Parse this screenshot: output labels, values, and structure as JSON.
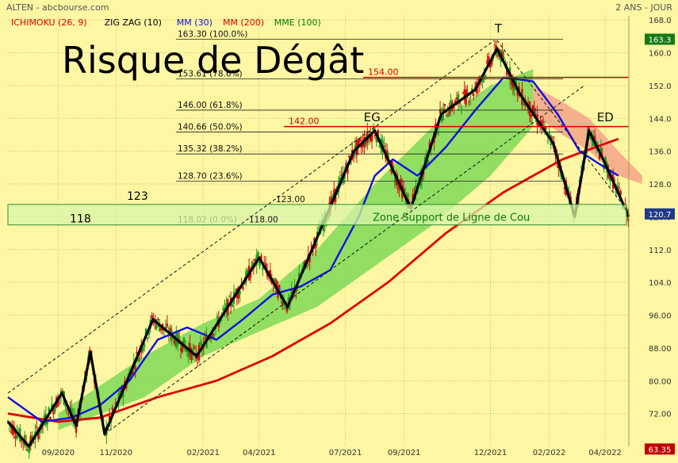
{
  "header": {
    "source": "ALTEN - abcbourse.com",
    "period": "2 ANS - JOUR"
  },
  "legend": [
    {
      "label": "ICHIMOKU (26, 9)",
      "color": "#e00000"
    },
    {
      "label": "ZIG ZAG (10)",
      "color": "#000000"
    },
    {
      "label": "MM (30)",
      "color": "#1010e0"
    },
    {
      "label": "MM (200)",
      "color": "#e00000"
    },
    {
      "label": "MME (100)",
      "color": "#008000"
    }
  ],
  "colors": {
    "background": "#fdf6a3",
    "grid": "#cdbd7c",
    "up_candle": "#19a019",
    "down_candle": "#d01010",
    "mm30": "#1010e0",
    "mm200": "#e00000",
    "zigzag": "#000000",
    "kumo_green": "#7ed957",
    "kumo_red": "#f4a38a",
    "price_marker_bg": "#157a15",
    "low_marker_bg": "#c00000",
    "zone_fill": "#d8f5a8",
    "zone_stroke": "#2e8b2e"
  },
  "annotations": {
    "title": "Risque de Dégât",
    "top_label": "T",
    "left_shoulder": "EG",
    "right_shoulder": "ED",
    "zone_label": "Zone Support de Ligne de Cou",
    "level_118": "118",
    "level_123": "123",
    "label_123_inline": "123.00",
    "label_118_inline": "118.00",
    "resistance_154": "154.00",
    "resistance_142": "142.00"
  },
  "chart_data": {
    "type": "candlestick",
    "title": "",
    "xlabel": "",
    "ylabel": "",
    "ylim": [
      64,
      169
    ],
    "y_ticks": [
      72,
      80,
      88,
      96,
      104,
      112,
      120,
      128,
      136,
      144,
      152,
      160,
      168
    ],
    "y_tick_labels": [
      "72.00",
      "80.00",
      "88.00",
      "96.00",
      "104.0",
      "112.0",
      "120.0",
      "128.0",
      "136.0",
      "144.0",
      "152.0",
      "160.0",
      "168.0"
    ],
    "x_tick_labels": [
      "09/2020",
      "11/2020",
      "02/2021",
      "04/2021",
      "07/2021",
      "09/2021",
      "12/2021",
      "02/2022",
      "04/2022"
    ],
    "x_tick_dates": [
      "2020-09-01",
      "2020-11-01",
      "2021-02-01",
      "2021-04-01",
      "2021-07-01",
      "2021-09-01",
      "2021-12-01",
      "2022-02-01",
      "2022-04-01"
    ],
    "x_range": [
      "2020-07-10",
      "2022-04-26"
    ],
    "grid": true,
    "last_price": "120.7",
    "period_high": "163.3",
    "period_low": "63.35",
    "fibonacci": [
      {
        "label": "163.30 (100.0%)",
        "value": 163.3
      },
      {
        "label": "153.61 (78.6%)",
        "value": 153.61
      },
      {
        "label": "146.00 (61.8%)",
        "value": 146.0
      },
      {
        "label": "140.66 (50.0%)",
        "value": 140.66
      },
      {
        "label": "135.32 (38.2%)",
        "value": 135.32
      },
      {
        "label": "128.70 (23.6%)",
        "value": 128.7
      },
      {
        "label": "118.02 (0.0%)",
        "value": 118.02
      }
    ],
    "resistances": [
      154,
      142
    ],
    "support_zone": [
      118,
      123
    ],
    "zigzag": [
      [
        "2020-07-10",
        70
      ],
      [
        "2020-08-01",
        64
      ],
      [
        "2020-09-05",
        77
      ],
      [
        "2020-09-20",
        69
      ],
      [
        "2020-10-05",
        87
      ],
      [
        "2020-10-20",
        67
      ],
      [
        "2020-12-10",
        95
      ],
      [
        "2021-01-25",
        86
      ],
      [
        "2021-04-01",
        110
      ],
      [
        "2021-05-01",
        98
      ],
      [
        "2021-07-10",
        136
      ],
      [
        "2021-08-01",
        141
      ],
      [
        "2021-09-08",
        122
      ],
      [
        "2021-10-10",
        145
      ],
      [
        "2021-11-15",
        151
      ],
      [
        "2021-12-08",
        161
      ],
      [
        "2022-01-01",
        150
      ],
      [
        "2022-02-05",
        138
      ],
      [
        "2022-02-28",
        120
      ],
      [
        "2022-03-15",
        141
      ],
      [
        "2022-04-01",
        133
      ],
      [
        "2022-04-26",
        120
      ]
    ],
    "mm30": [
      [
        "2020-07-10",
        76
      ],
      [
        "2020-08-15",
        70
      ],
      [
        "2020-09-15",
        71
      ],
      [
        "2020-10-15",
        74
      ],
      [
        "2020-11-15",
        80
      ],
      [
        "2020-12-15",
        90
      ],
      [
        "2021-01-15",
        93
      ],
      [
        "2021-02-15",
        90
      ],
      [
        "2021-03-15",
        95
      ],
      [
        "2021-04-15",
        101
      ],
      [
        "2021-05-15",
        103
      ],
      [
        "2021-06-15",
        107
      ],
      [
        "2021-07-15",
        120
      ],
      [
        "2021-08-01",
        130
      ],
      [
        "2021-08-20",
        134
      ],
      [
        "2021-09-15",
        130
      ],
      [
        "2021-10-15",
        137
      ],
      [
        "2021-11-15",
        146
      ],
      [
        "2021-12-15",
        154
      ],
      [
        "2022-01-15",
        153
      ],
      [
        "2022-02-10",
        145
      ],
      [
        "2022-03-05",
        136
      ],
      [
        "2022-03-25",
        133
      ],
      [
        "2022-04-15",
        130
      ]
    ],
    "mm200": [
      [
        "2020-07-10",
        72
      ],
      [
        "2020-09-01",
        70
      ],
      [
        "2020-10-15",
        71
      ],
      [
        "2020-12-15",
        76
      ],
      [
        "2021-02-15",
        80
      ],
      [
        "2021-04-15",
        86
      ],
      [
        "2021-06-15",
        94
      ],
      [
        "2021-08-15",
        104
      ],
      [
        "2021-10-15",
        116
      ],
      [
        "2021-12-15",
        126
      ],
      [
        "2022-02-15",
        134
      ],
      [
        "2022-04-15",
        139
      ]
    ],
    "kumo_green": [
      {
        "x": [
          "2020-09-01",
          "2020-12-01",
          "2021-02-01",
          "2021-04-01",
          "2021-06-01",
          "2021-08-01",
          "2021-10-01",
          "2021-12-01",
          "2022-01-15"
        ],
        "top": [
          72,
          86,
          94,
          100,
          112,
          128,
          142,
          152,
          156
        ],
        "bottom": [
          68,
          76,
          86,
          92,
          98,
          108,
          118,
          130,
          142
        ]
      }
    ],
    "kumo_red": [
      {
        "x": [
          "2022-01-15",
          "2022-02-15",
          "2022-03-15",
          "2022-04-15",
          "2022-05-10"
        ],
        "top": [
          152,
          148,
          144,
          136,
          130
        ],
        "bottom": [
          145,
          140,
          136,
          130,
          128
        ]
      }
    ]
  }
}
